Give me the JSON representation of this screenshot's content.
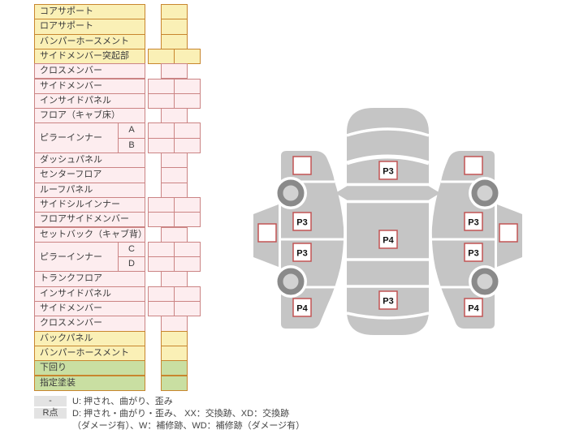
{
  "colors": {
    "yellow_bg": "#faf0b6",
    "yellow_border": "#c8862e",
    "pink_bg": "#fdedef",
    "pink_border": "#cb8484",
    "green_bg": "#c9dfa2",
    "green_border": "#c8862e",
    "badge_gray": "#e3e3e3",
    "car_body": "#c5c5c5",
    "wheel_ring": "#8a8a8a",
    "wheel_hub": "#d2d2d2",
    "marker_border": "#c25454",
    "text": "#3c3c3c"
  },
  "parts_table": {
    "rows": [
      {
        "label": "コアサポート",
        "sub": null,
        "span": 1,
        "color": "yellow",
        "cells": "single"
      },
      {
        "label": "ロアサポート",
        "sub": null,
        "span": 1,
        "color": "yellow",
        "cells": "single"
      },
      {
        "label": "バンパーホースメント",
        "sub": null,
        "span": 1,
        "color": "yellow",
        "cells": "single"
      },
      {
        "label": "サイドメンバー突起部",
        "sub": null,
        "span": 1,
        "color": "yellow",
        "cells": "double"
      },
      {
        "label": "クロスメンバー",
        "sub": null,
        "span": 1,
        "color": "pink",
        "cells": "single"
      },
      {
        "label": "サイドメンバー",
        "sub": null,
        "span": 1,
        "color": "pink",
        "cells": "double"
      },
      {
        "label": "インサイドパネル",
        "sub": null,
        "span": 1,
        "color": "pink",
        "cells": "double"
      },
      {
        "label": "フロア（キャブ床）",
        "sub": null,
        "span": 1,
        "color": "pink",
        "cells": "single"
      },
      {
        "label": "ピラーインナー",
        "sub": "A",
        "span": 2,
        "color": "pink",
        "cells": "double"
      },
      {
        "label": null,
        "sub": "B",
        "span": 0,
        "color": "pink",
        "cells": "double"
      },
      {
        "label": "ダッシュパネル",
        "sub": null,
        "span": 1,
        "color": "pink",
        "cells": "single"
      },
      {
        "label": "センターフロア",
        "sub": null,
        "span": 1,
        "color": "pink",
        "cells": "single"
      },
      {
        "label": "ルーフパネル",
        "sub": null,
        "span": 1,
        "color": "pink",
        "cells": "single"
      },
      {
        "label": "サイドシルインナー",
        "sub": null,
        "span": 1,
        "color": "pink",
        "cells": "double"
      },
      {
        "label": "フロアサイドメンバー",
        "sub": null,
        "span": 1,
        "color": "pink",
        "cells": "double"
      },
      {
        "label": "セットバック（キャブ背）",
        "sub": null,
        "span": 1,
        "color": "pink",
        "cells": "single"
      },
      {
        "label": "ピラーインナー",
        "sub": "C",
        "span": 2,
        "color": "pink",
        "cells": "double"
      },
      {
        "label": null,
        "sub": "D",
        "span": 0,
        "color": "pink",
        "cells": "double"
      },
      {
        "label": "トランクフロア",
        "sub": null,
        "span": 1,
        "color": "pink",
        "cells": "single"
      },
      {
        "label": "インサイドパネル",
        "sub": null,
        "span": 1,
        "color": "pink",
        "cells": "double"
      },
      {
        "label": "サイドメンバー",
        "sub": null,
        "span": 1,
        "color": "pink",
        "cells": "double"
      },
      {
        "label": "クロスメンバー",
        "sub": null,
        "span": 1,
        "color": "pink",
        "cells": "single"
      },
      {
        "label": "バックパネル",
        "sub": null,
        "span": 1,
        "color": "yellow",
        "cells": "single"
      },
      {
        "label": "バンパーホースメント",
        "sub": null,
        "span": 1,
        "color": "yellow",
        "cells": "single"
      },
      {
        "label": "下回り",
        "sub": null,
        "span": 1,
        "color": "green",
        "cells": "single"
      },
      {
        "label": "指定塗装",
        "sub": null,
        "span": 1,
        "color": "green",
        "cells": "single"
      }
    ]
  },
  "diagram": {
    "top_view_labels": [
      "P3",
      "P4",
      "P3"
    ],
    "left_side_labels": [
      "",
      "P3",
      "P3",
      "P4"
    ],
    "right_side_labels": [
      "",
      "P3",
      "P3",
      "P4"
    ],
    "left_flank_label": "",
    "right_flank_label": ""
  },
  "legend": {
    "rows": [
      {
        "badge": "-",
        "text": "U: 押され、曲がり、歪み"
      },
      {
        "badge": "R点",
        "text": "D: 押され・曲がり・歪み、 XX：交換跡、XD：交換跡"
      },
      {
        "badge": "",
        "text": "（ダメージ有）、W：補修跡、WD：補修跡（ダメージ有）"
      }
    ]
  }
}
